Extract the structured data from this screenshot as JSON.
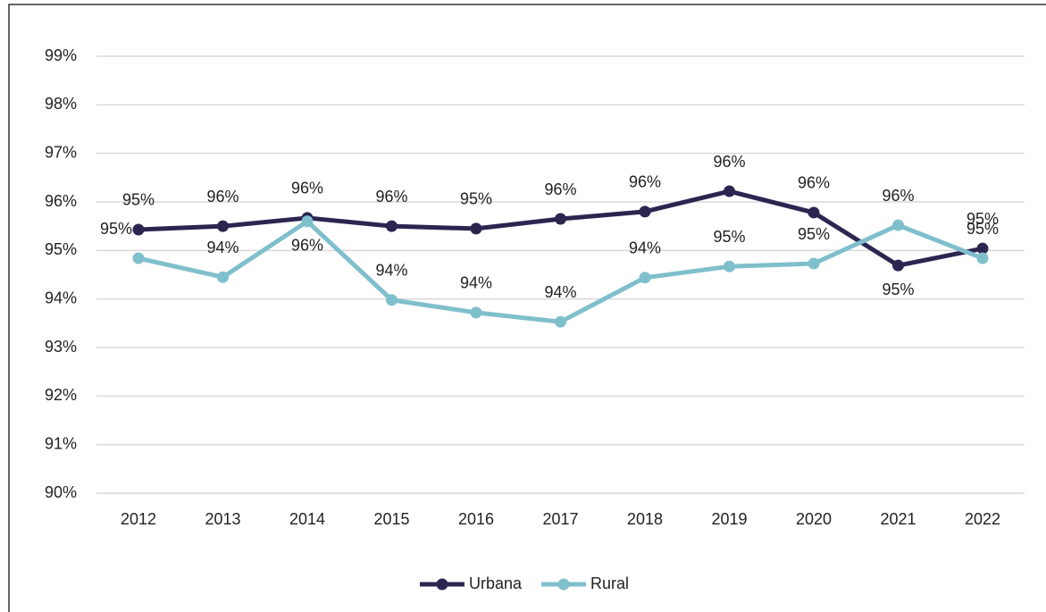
{
  "chart_data": {
    "type": "line",
    "categories": [
      "2012",
      "2013",
      "2014",
      "2015",
      "2016",
      "2017",
      "2018",
      "2019",
      "2020",
      "2021",
      "2022"
    ],
    "series": [
      {
        "name": "Urbana",
        "color": "#2b2550",
        "values": [
          95.43,
          95.5,
          95.67,
          95.5,
          95.45,
          95.65,
          95.8,
          96.22,
          95.78,
          94.69,
          95.04
        ],
        "value_labels": [
          "95%",
          "96%",
          "96%",
          "96%",
          "95%",
          "96%",
          "96%",
          "96%",
          "96%",
          "95%",
          "95%"
        ]
      },
      {
        "name": "Rural",
        "color": "#7fbfcc",
        "values": [
          94.84,
          94.45,
          95.6,
          93.98,
          93.72,
          93.53,
          94.44,
          94.67,
          94.73,
          95.52,
          94.84
        ],
        "value_labels": [
          "95%",
          "94%",
          "96%",
          "94%",
          "94%",
          "94%",
          "94%",
          "95%",
          "95%",
          "96%",
          "95%"
        ]
      }
    ],
    "ylim": [
      90,
      99
    ],
    "yticks": [
      {
        "value": 90,
        "label": "90%"
      },
      {
        "value": 91,
        "label": "91%"
      },
      {
        "value": 92,
        "label": "92%"
      },
      {
        "value": 93,
        "label": "93%"
      },
      {
        "value": 94,
        "label": "94%"
      },
      {
        "value": 95,
        "label": "95%"
      },
      {
        "value": 96,
        "label": "96%"
      },
      {
        "value": 97,
        "label": "97%"
      },
      {
        "value": 98,
        "label": "98%"
      },
      {
        "value": 99,
        "label": "99%"
      }
    ],
    "grid": true,
    "legend": "bottom"
  }
}
